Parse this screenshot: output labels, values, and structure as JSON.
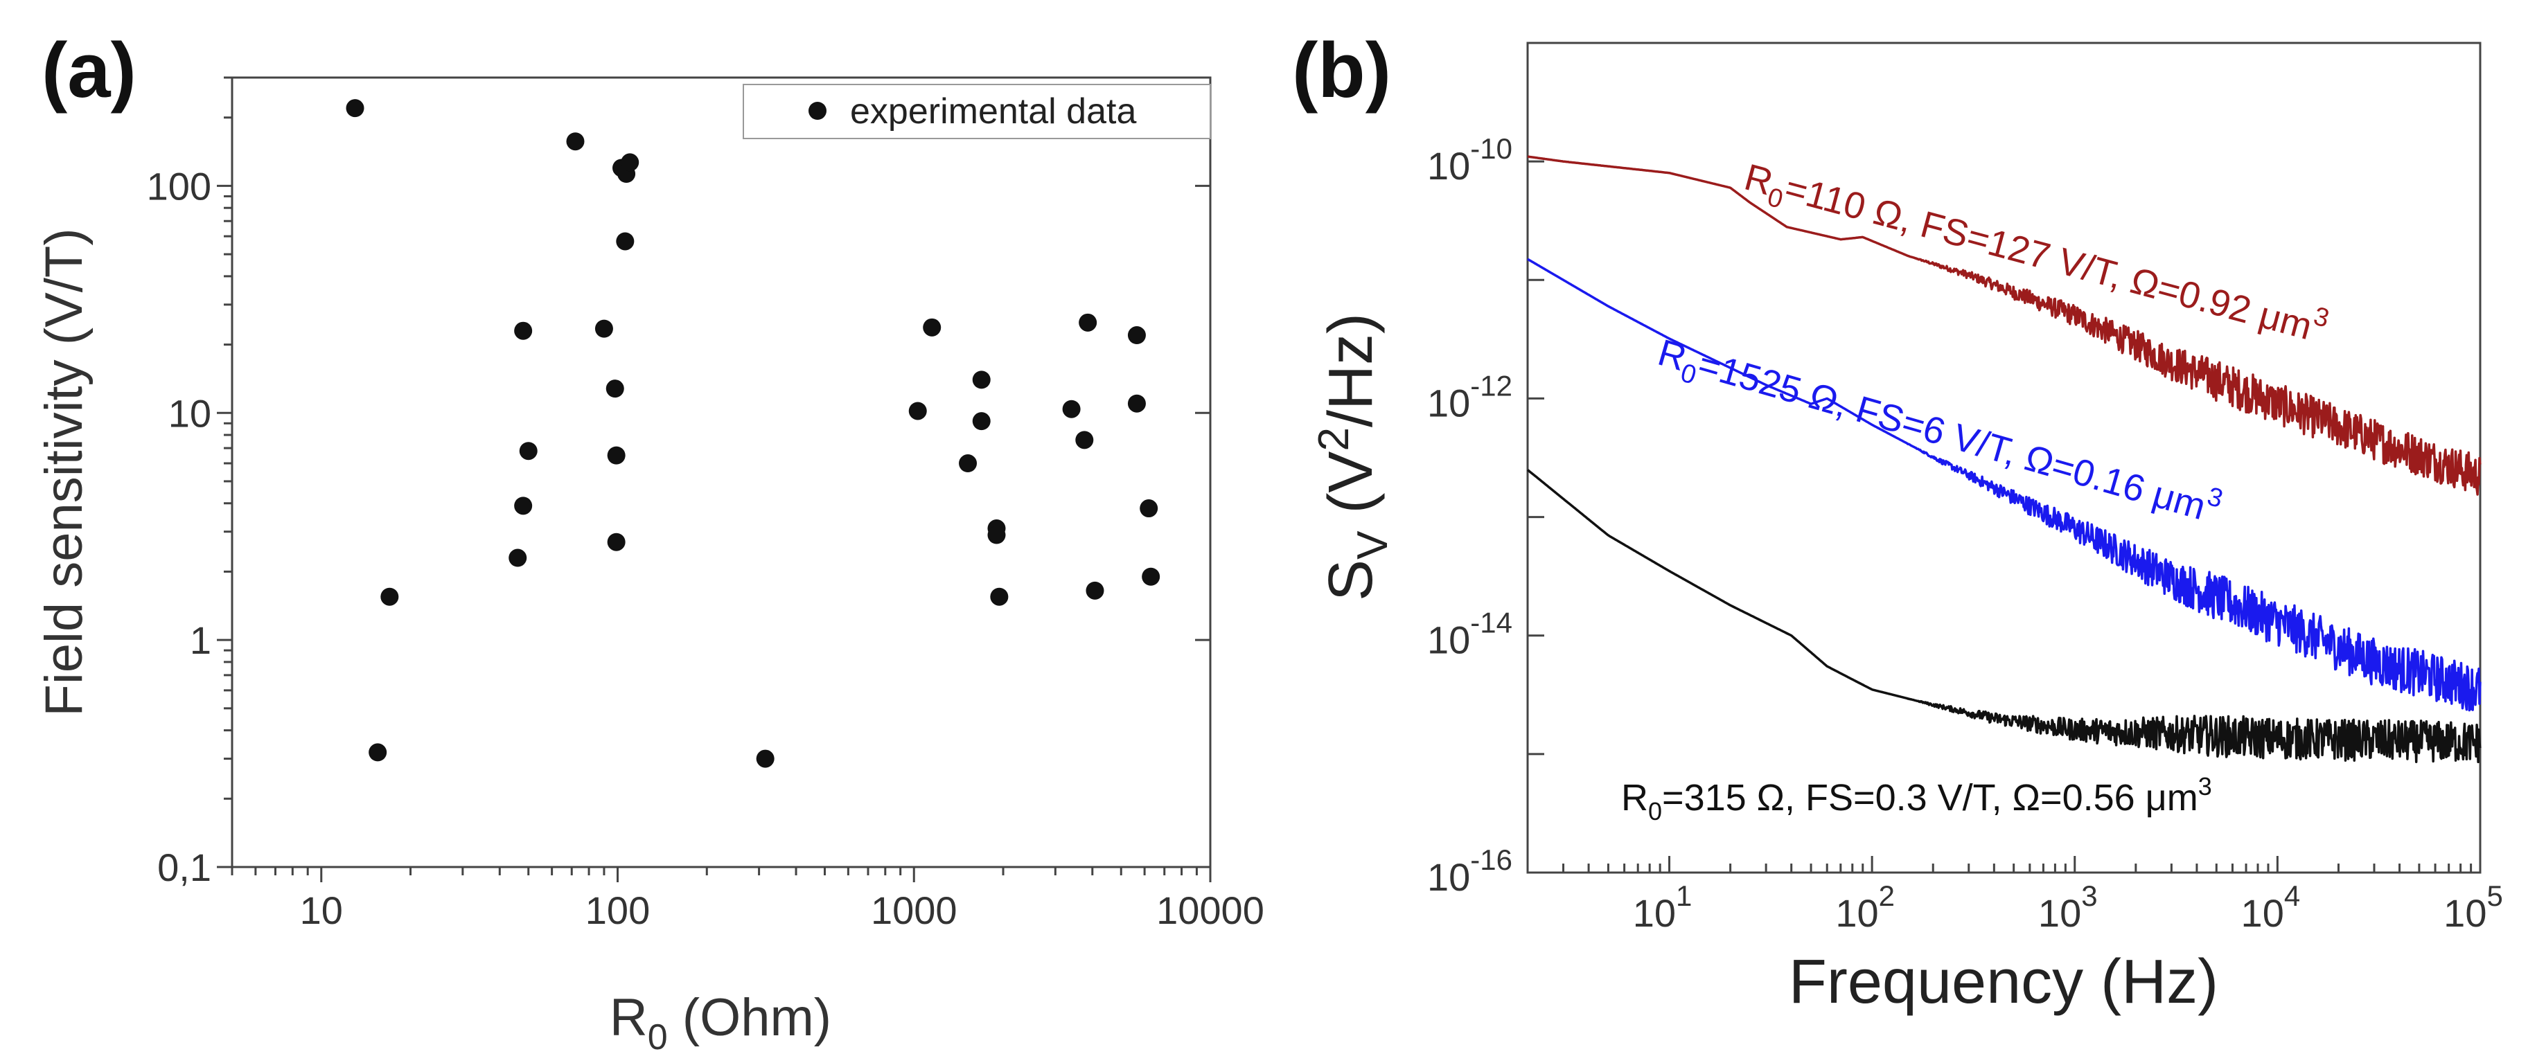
{
  "chart_data": [
    {
      "type": "scatter",
      "panel_label": "(a)",
      "xlabel_main": "R",
      "xlabel_sub": "0",
      "xlabel_unit": " (Ohm)",
      "ylabel": "Field sensitivity (V/T)",
      "xscale": "log",
      "yscale": "log",
      "xlim": [
        5,
        10000
      ],
      "ylim": [
        0.1,
        300
      ],
      "x_ticks": [
        {
          "value": 10,
          "label": "10"
        },
        {
          "value": 100,
          "label": "100"
        },
        {
          "value": 1000,
          "label": "1000"
        },
        {
          "value": 10000,
          "label": "10000"
        }
      ],
      "y_ticks": [
        {
          "value": 0.1,
          "label": "0,1"
        },
        {
          "value": 1,
          "label": "1"
        },
        {
          "value": 10,
          "label": "10"
        },
        {
          "value": 100,
          "label": "100"
        }
      ],
      "legend": {
        "position": "top-right",
        "label": "experimental data"
      },
      "series": [
        {
          "name": "experimental data",
          "color": "#111111",
          "points": [
            [
              13,
              220
            ],
            [
              15.5,
              0.32
            ],
            [
              17,
              1.55
            ],
            [
              46,
              2.3
            ],
            [
              48,
              3.9
            ],
            [
              48,
              23
            ],
            [
              50,
              6.8
            ],
            [
              72,
              157
            ],
            [
              90,
              23.5
            ],
            [
              98,
              12.8
            ],
            [
              99,
              6.5
            ],
            [
              99,
              2.7
            ],
            [
              103,
              120
            ],
            [
              106,
              57
            ],
            [
              107,
              113
            ],
            [
              110,
              127
            ],
            [
              315,
              0.3
            ],
            [
              1030,
              10.2
            ],
            [
              1150,
              23.8
            ],
            [
              1520,
              6
            ],
            [
              1690,
              14
            ],
            [
              1690,
              9.2
            ],
            [
              1900,
              3.1
            ],
            [
              1900,
              2.9
            ],
            [
              1940,
              1.55
            ],
            [
              3400,
              10.4
            ],
            [
              3760,
              7.6
            ],
            [
              3860,
              25
            ],
            [
              4080,
              1.65
            ],
            [
              5650,
              22
            ],
            [
              5650,
              11
            ],
            [
              6200,
              3.8
            ],
            [
              6300,
              1.9
            ]
          ]
        }
      ]
    },
    {
      "type": "line",
      "panel_label": "(b)",
      "xlabel": "Frequency (Hz)",
      "ylabel_main": "S",
      "ylabel_sub": "V",
      "ylabel_unit_open": " (V",
      "ylabel_sup": "2",
      "ylabel_unit_close": "/Hz)",
      "xscale": "log",
      "yscale": "log",
      "xlim": [
        2,
        100000
      ],
      "ylim": [
        1e-16,
        1e-09
      ],
      "x_ticks": [
        {
          "value": 10,
          "base": "10",
          "exp": "1"
        },
        {
          "value": 100,
          "base": "10",
          "exp": "2"
        },
        {
          "value": 1000,
          "base": "10",
          "exp": "3"
        },
        {
          "value": 10000,
          "base": "10",
          "exp": "4"
        },
        {
          "value": 100000,
          "base": "10",
          "exp": "5"
        }
      ],
      "y_ticks": [
        {
          "value": 1e-10,
          "base": "10",
          "exp": "-10"
        },
        {
          "value": 1e-12,
          "base": "10",
          "exp": "-12"
        },
        {
          "value": 1e-14,
          "base": "10",
          "exp": "-14"
        },
        {
          "value": 1e-16,
          "base": "10",
          "exp": "-16"
        }
      ],
      "series": [
        {
          "name": "R0=110 Ω",
          "color": "#9b1c1c",
          "annotation": {
            "p1": "R",
            "sub": "0",
            "p2": "=110 Ω, FS=127 V/T, Ω=0.92 μm",
            "sup": "3"
          },
          "points": [
            [
              2,
              1.1e-10
            ],
            [
              3,
              1e-10
            ],
            [
              10,
              8e-11
            ],
            [
              20,
              6e-11
            ],
            [
              25,
              4.5e-11
            ],
            [
              38,
              2.8e-11
            ],
            [
              70,
              2.2e-11
            ],
            [
              90,
              2.3e-11
            ],
            [
              150,
              1.6e-11
            ],
            [
              300,
              1.1e-11
            ],
            [
              1000,
              5e-12
            ],
            [
              3000,
              2e-12
            ],
            [
              10000,
              9e-13
            ],
            [
              30000,
              4.5e-13
            ],
            [
              100000,
              2.2e-13
            ]
          ],
          "noise": 0.35
        },
        {
          "name": "R0=1525 Ω",
          "color": "#1a1aee",
          "annotation": {
            "p1": "R",
            "sub": "0",
            "p2": "=1525 Ω, FS=6 V/T, Ω=0.16 μm",
            "sup": "3"
          },
          "points": [
            [
              2,
              1.5e-11
            ],
            [
              5,
              6e-12
            ],
            [
              10,
              3.2e-12
            ],
            [
              30,
              1.3e-12
            ],
            [
              50,
              9e-13
            ],
            [
              60,
              1e-12
            ],
            [
              100,
              6e-13
            ],
            [
              200,
              3.2e-13
            ],
            [
              1000,
              8e-14
            ],
            [
              3000,
              3e-14
            ],
            [
              10000,
              1.3e-14
            ],
            [
              30000,
              6e-15
            ],
            [
              100000,
              3.5e-15
            ]
          ],
          "noise": 0.4
        },
        {
          "name": "R0=315 Ω",
          "color": "#111111",
          "annotation": {
            "p1": "R",
            "sub": "0",
            "p2": "=315 Ω, FS=0.3 V/T, Ω=0.56 μm",
            "sup": "3"
          },
          "points": [
            [
              2,
              2.5e-13
            ],
            [
              5,
              7e-14
            ],
            [
              10,
              3.5e-14
            ],
            [
              20,
              1.8e-14
            ],
            [
              40,
              1e-14
            ],
            [
              60,
              5.5e-15
            ],
            [
              100,
              3.5e-15
            ],
            [
              200,
              2.6e-15
            ],
            [
              400,
              2e-15
            ],
            [
              1000,
              1.6e-15
            ],
            [
              10000,
              1.35e-15
            ],
            [
              100000,
              1.25e-15
            ]
          ],
          "noise": 0.35
        }
      ]
    }
  ]
}
